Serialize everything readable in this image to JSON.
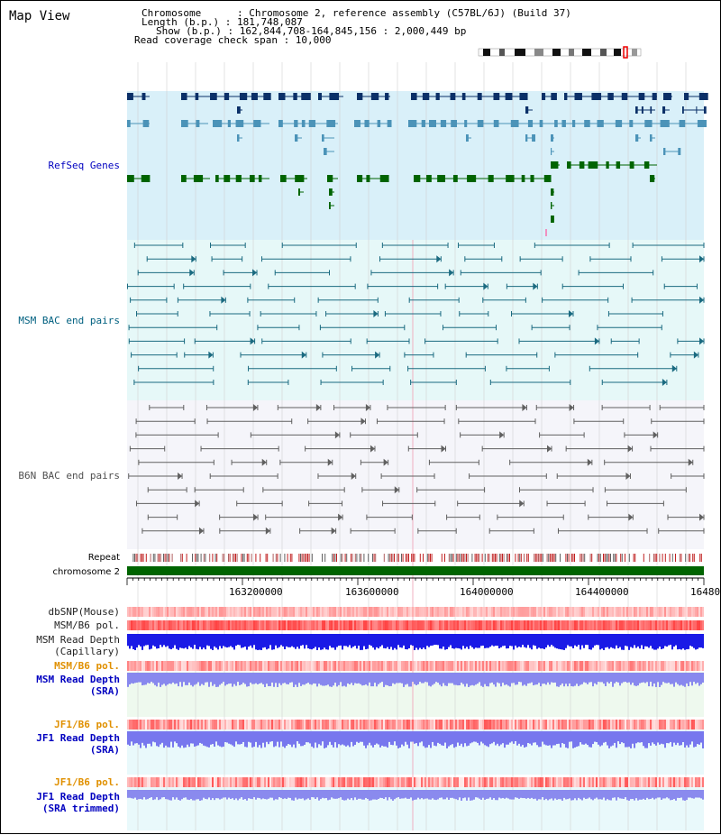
{
  "title": "Map View",
  "info": {
    "chromosome": "Chromosome      : Chromosome 2, reference assembly (C57BL/6J) (Build 37)",
    "length": "Length (b.p.) : 181,748,087",
    "show": "Show (b.p.) : 162,844,708-164,845,156 : 2,000,449 bp",
    "coverage": "Read coverage check span : 10,000"
  },
  "tracks": {
    "refseq": "RefSeq Genes",
    "msm_bac": "MSM BAC end pairs",
    "b6n_bac": "B6N BAC end pairs",
    "repeat": "Repeat",
    "chromosome": "chromosome 2",
    "dbsnp": "dbSNP(Mouse)",
    "msm_b6_pol": "MSM/B6 pol.",
    "msm_depth_cap_1": "MSM Read Depth",
    "msm_depth_cap_2": "(Capillary)",
    "msm_b6_pol_2": "MSM/B6 pol.",
    "msm_depth_sra_1": "MSM Read Depth",
    "msm_depth_sra_2": "(SRA)",
    "jf1_b6_pol": "JF1/B6 pol.",
    "jf1_depth_sra_1": "JF1 Read Depth",
    "jf1_depth_sra_2": "(SRA)",
    "jf1_b6_pol_2": "JF1/B6 pol.",
    "jf1_depth_trim_1": "JF1 Read Depth",
    "jf1_depth_trim_2": "(SRA trimmed)"
  },
  "axis_ticks": [
    "163200000",
    "163600000",
    "164000000",
    "164400000",
    "16480"
  ],
  "colors": {
    "refseq_bg": "#d9f0f9",
    "refseq_dark": "#0b3068",
    "refseq_mid": "#4b93b8",
    "refseq_green": "#006400",
    "msm_bg": "#e6f8f8",
    "msm_line": "#1a6a80",
    "b6n_bg": "#f5f5fa",
    "b6n_line": "#606060",
    "chrom_green": "#006400",
    "pol_red": "#f05050",
    "depth_blue": "#1a1ae6",
    "depth_light": "#7777ee",
    "label_blue": "#0000c0",
    "label_teal": "#006080",
    "label_orange": "#e09000"
  }
}
